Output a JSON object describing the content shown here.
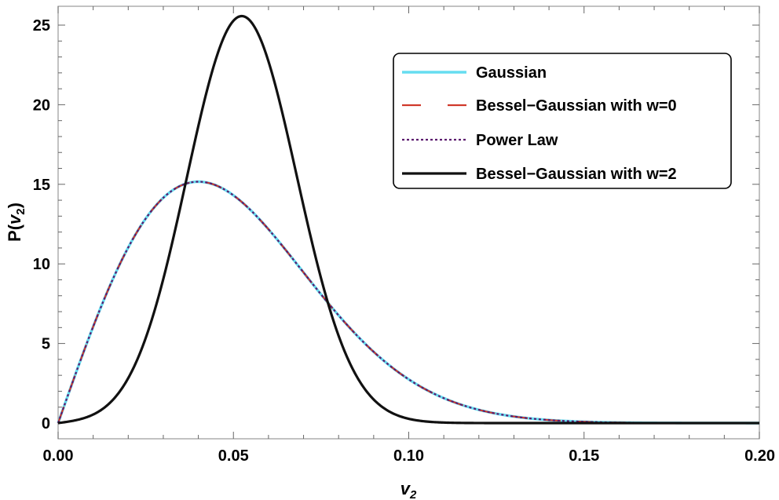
{
  "chart_data": {
    "type": "line",
    "title": "",
    "xlabel": "v",
    "xlabel_sub": "2",
    "ylabel_prefix": "P(",
    "ylabel_var": "v",
    "ylabel_sub": "2",
    "ylabel_suffix": ")",
    "xlim": [
      0,
      0.2
    ],
    "ylim": [
      -1,
      26
    ],
    "xticks": [
      0,
      0.05,
      0.1,
      0.15,
      0.2
    ],
    "xtick_labels": [
      "0.00",
      "0.05",
      "0.10",
      "0.15",
      "0.20"
    ],
    "yticks": [
      0,
      5,
      10,
      15,
      20,
      25
    ],
    "ytick_labels": [
      "0",
      "5",
      "10",
      "15",
      "20",
      "25"
    ],
    "legend_position": "top-right",
    "series": [
      {
        "name": "Gaussian",
        "color": "#66ddf0",
        "style": "solid",
        "formula": {
          "kind": "rayleigh",
          "sigma": 0.04
        },
        "peak": {
          "x": 0.04,
          "y": 15.2
        }
      },
      {
        "name": "Bessel−Gaussian with w=0",
        "color": "#d0392b",
        "style": "dashed",
        "formula": {
          "kind": "rayleigh",
          "sigma": 0.04
        },
        "peak": {
          "x": 0.04,
          "y": 15.2
        }
      },
      {
        "name": "Power Law",
        "color": "#5b1a6e",
        "style": "dotted",
        "formula": {
          "kind": "rayleigh",
          "sigma": 0.04
        },
        "peak": {
          "x": 0.04,
          "y": 15.2
        }
      },
      {
        "name": "Bessel−Gaussian with w=2",
        "color": "#111111",
        "style": "solid",
        "formula": {
          "kind": "bessel_gaussian",
          "nu": 0.05,
          "sigma": 0.016
        },
        "peak": {
          "x": 0.05,
          "y": 24.8
        }
      }
    ]
  }
}
